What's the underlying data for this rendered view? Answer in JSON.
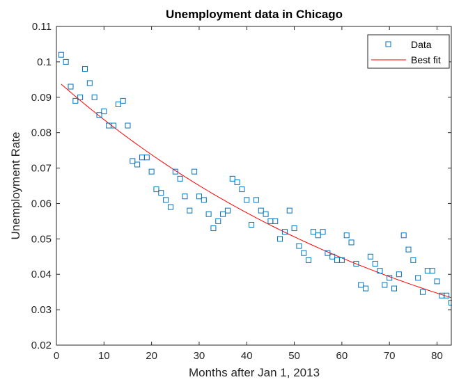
{
  "chart_data": {
    "type": "scatter",
    "title": "Unemployment data in Chicago",
    "xlabel": "Months after Jan 1, 2013",
    "ylabel": "Unemployment Rate",
    "xlim": [
      0,
      83
    ],
    "ylim": [
      0.02,
      0.11
    ],
    "xticks": [
      0,
      10,
      20,
      30,
      40,
      50,
      60,
      70,
      80
    ],
    "xtick_labels": [
      "0",
      "10",
      "20",
      "30",
      "40",
      "50",
      "60",
      "70",
      "80"
    ],
    "yticks": [
      0.02,
      0.03,
      0.04,
      0.05,
      0.06,
      0.07,
      0.08,
      0.09,
      0.1,
      0.11
    ],
    "ytick_labels": [
      "0.02",
      "0.03",
      "0.04",
      "0.05",
      "0.06",
      "0.07",
      "0.08",
      "0.09",
      "0.1",
      "0.11"
    ],
    "grid": false,
    "legend": {
      "placement": "top-right"
    },
    "series": [
      {
        "name": "Data",
        "kind": "scatter",
        "marker": "square",
        "color": "#0072BD",
        "x": [
          1,
          2,
          3,
          4,
          5,
          6,
          7,
          8,
          9,
          10,
          11,
          12,
          13,
          14,
          15,
          16,
          17,
          18,
          19,
          20,
          21,
          22,
          23,
          24,
          25,
          26,
          27,
          28,
          29,
          30,
          31,
          32,
          33,
          34,
          35,
          36,
          37,
          38,
          39,
          40,
          41,
          42,
          43,
          44,
          45,
          46,
          47,
          48,
          49,
          50,
          51,
          52,
          53,
          54,
          55,
          56,
          57,
          58,
          59,
          60,
          61,
          62,
          63,
          64,
          65,
          66,
          67,
          68,
          69,
          70,
          71,
          72,
          73,
          74,
          75,
          76,
          77,
          78,
          79,
          80,
          81,
          82,
          83
        ],
        "y": [
          0.102,
          0.1,
          0.093,
          0.089,
          0.09,
          0.098,
          0.094,
          0.09,
          0.085,
          0.086,
          0.082,
          0.082,
          0.088,
          0.089,
          0.082,
          0.072,
          0.071,
          0.073,
          0.073,
          0.069,
          0.064,
          0.063,
          0.061,
          0.059,
          0.069,
          0.067,
          0.062,
          0.058,
          0.069,
          0.062,
          0.061,
          0.057,
          0.053,
          0.055,
          0.057,
          0.058,
          0.067,
          0.066,
          0.064,
          0.061,
          0.054,
          0.061,
          0.058,
          0.057,
          0.055,
          0.055,
          0.05,
          0.052,
          0.058,
          0.053,
          0.048,
          0.046,
          0.044,
          0.052,
          0.051,
          0.052,
          0.046,
          0.045,
          0.044,
          0.044,
          0.051,
          0.049,
          0.043,
          0.037,
          0.036,
          0.045,
          0.043,
          0.041,
          0.037,
          0.039,
          0.036,
          0.04,
          0.051,
          0.047,
          0.044,
          0.039,
          0.035,
          0.041,
          0.041,
          0.038,
          0.034,
          0.034,
          0.032
        ]
      },
      {
        "name": "Best fit",
        "kind": "line",
        "color": "#FF0000",
        "x": [
          1,
          83
        ],
        "fit": {
          "model": "exponential",
          "a": 0.0949,
          "b": -0.01258
        }
      }
    ]
  }
}
